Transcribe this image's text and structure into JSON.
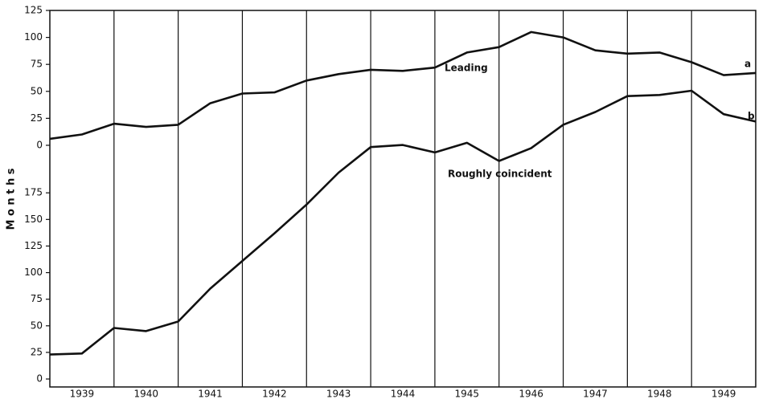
{
  "chart_data": {
    "type": "line",
    "y_label": "M o n t h s",
    "categories": [
      "1939",
      "1940",
      "1941",
      "1942",
      "1943",
      "1944",
      "1945",
      "1946",
      "1947",
      "1948",
      "1949"
    ],
    "xlim": [
      1939,
      1950
    ],
    "ylim": [
      -224,
      125
    ],
    "yticks": [
      0,
      25,
      50,
      75,
      100,
      125
    ],
    "y2lim": [
      -7.5,
      346.5
    ],
    "y2ticks": [
      0,
      25,
      50,
      75,
      100,
      125,
      150,
      175
    ],
    "annotations": [
      "Leading",
      "Roughly coincident",
      "a",
      "b"
    ],
    "series": [
      {
        "name": "Leading",
        "color": "#111111",
        "axis": "y",
        "x": [
          1939,
          1939.5,
          1940,
          1940.5,
          1941,
          1941.5,
          1942,
          1942.5,
          1943,
          1943.5,
          1944,
          1944.5,
          1945,
          1945.5,
          1946,
          1946.5,
          1947,
          1947.5,
          1948,
          1948.5,
          1949,
          1949.5,
          1950
        ],
        "values": [
          6,
          10,
          20,
          17,
          19,
          39,
          48,
          49,
          60,
          66,
          70,
          69,
          72,
          86,
          91,
          105,
          100,
          88,
          85,
          86,
          77,
          65,
          67
        ]
      },
      {
        "name": "Roughly coincident",
        "color": "#111111",
        "axis": "y2",
        "x": [
          1939,
          1939.5,
          1940,
          1940.5,
          1941,
          1941.5,
          1942,
          1942.5,
          1943,
          1943.5,
          1944,
          1944.5,
          1945,
          1945.5,
          1946,
          1946.5,
          1947,
          1947.5,
          1948,
          1948.5,
          1949,
          1949.5,
          1950
        ],
        "values": [
          23,
          24,
          48,
          45,
          54,
          85,
          111,
          137,
          164,
          194,
          218,
          220,
          213,
          222,
          205,
          217,
          239,
          251,
          266,
          267,
          271,
          249,
          242
        ]
      }
    ]
  }
}
